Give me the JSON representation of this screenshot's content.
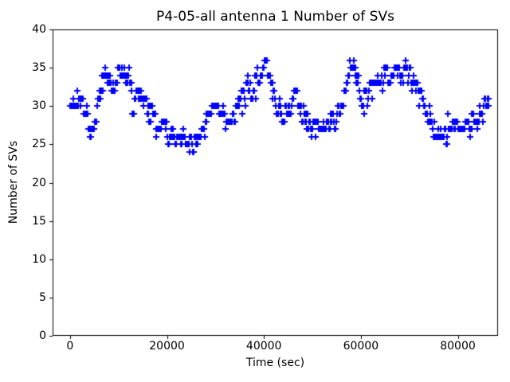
{
  "chart_data": {
    "type": "scatter",
    "title": "P4-05-all antenna 1 Number of SVs",
    "xlabel": "Time (sec)",
    "ylabel": "Number of SVs",
    "marker": "plus",
    "marker_color": "#0000ff",
    "axis_color": "#000000",
    "background_color": "#ffffff",
    "grid": false,
    "legend": null,
    "xlim": [
      -3600,
      88300
    ],
    "ylim": [
      0,
      40
    ],
    "xticks": [
      0,
      20000,
      40000,
      60000,
      80000
    ],
    "yticks": [
      0,
      5,
      10,
      15,
      20,
      25,
      30,
      35,
      40
    ],
    "series": [
      {
        "name": "Number of SVs",
        "time_range_sec": [
          0,
          86400
        ],
        "value_range": [
          24,
          36
        ],
        "approx_sample_interval_sec": 150,
        "trend_keypoints": [
          [
            0,
            30.2
          ],
          [
            900,
            30.4
          ],
          [
            1600,
            31.2
          ],
          [
            2400,
            31.4
          ],
          [
            3000,
            30.0
          ],
          [
            3600,
            27.8
          ],
          [
            4200,
            26.3
          ],
          [
            4800,
            27.0
          ],
          [
            5400,
            28.8
          ],
          [
            6000,
            31.0
          ],
          [
            6600,
            33.2
          ],
          [
            7200,
            34.6
          ],
          [
            7800,
            34.0
          ],
          [
            8400,
            32.2
          ],
          [
            9000,
            32.6
          ],
          [
            9600,
            33.8
          ],
          [
            10300,
            34.6
          ],
          [
            11000,
            35.2
          ],
          [
            11600,
            34.2
          ],
          [
            12300,
            32.8
          ],
          [
            13000,
            31.2
          ],
          [
            13700,
            30.6
          ],
          [
            14500,
            30.8
          ],
          [
            15300,
            30.4
          ],
          [
            16000,
            29.7
          ],
          [
            16800,
            29.0
          ],
          [
            17600,
            28.3
          ],
          [
            18400,
            27.7
          ],
          [
            19200,
            27.1
          ],
          [
            20000,
            26.5
          ],
          [
            20800,
            26.0
          ],
          [
            21600,
            25.7
          ],
          [
            22400,
            25.5
          ],
          [
            23200,
            25.4
          ],
          [
            24000,
            25.2
          ],
          [
            24800,
            25.0
          ],
          [
            25500,
            24.8
          ],
          [
            26100,
            25.3
          ],
          [
            26700,
            25.9
          ],
          [
            27300,
            26.7
          ],
          [
            27900,
            27.6
          ],
          [
            28500,
            28.6
          ],
          [
            29200,
            29.2
          ],
          [
            29800,
            30.2
          ],
          [
            30400,
            29.9
          ],
          [
            31000,
            29.3
          ],
          [
            31600,
            29.0
          ],
          [
            32300,
            28.4
          ],
          [
            33000,
            28.0
          ],
          [
            33700,
            28.7
          ],
          [
            34400,
            29.9
          ],
          [
            35200,
            30.8
          ],
          [
            36200,
            31.3
          ],
          [
            37200,
            31.9
          ],
          [
            38000,
            32.7
          ],
          [
            38700,
            33.8
          ],
          [
            39300,
            34.7
          ],
          [
            39900,
            35.4
          ],
          [
            40500,
            35.0
          ],
          [
            41000,
            33.7
          ],
          [
            41500,
            32.2
          ],
          [
            42000,
            30.7
          ],
          [
            42600,
            30.0
          ],
          [
            43400,
            29.4
          ],
          [
            44200,
            29.0
          ],
          [
            45000,
            29.4
          ],
          [
            45800,
            30.2
          ],
          [
            46400,
            31.2
          ],
          [
            47000,
            30.6
          ],
          [
            47600,
            29.6
          ],
          [
            48200,
            28.7
          ],
          [
            49000,
            28.1
          ],
          [
            49800,
            27.6
          ],
          [
            50600,
            27.3
          ],
          [
            51600,
            27.1
          ],
          [
            52600,
            27.3
          ],
          [
            53600,
            27.6
          ],
          [
            54100,
            28.5
          ],
          [
            54700,
            28.2
          ],
          [
            55300,
            28.9
          ],
          [
            55900,
            29.8
          ],
          [
            56500,
            31.4
          ],
          [
            57100,
            33.2
          ],
          [
            57700,
            34.8
          ],
          [
            58300,
            35.4
          ],
          [
            58900,
            34.4
          ],
          [
            59500,
            33.0
          ],
          [
            60100,
            31.3
          ],
          [
            60700,
            30.4
          ],
          [
            61300,
            31.6
          ],
          [
            61900,
            32.9
          ],
          [
            62600,
            33.5
          ],
          [
            63400,
            33.3
          ],
          [
            64200,
            33.4
          ],
          [
            65000,
            33.6
          ],
          [
            65800,
            33.9
          ],
          [
            66600,
            34.2
          ],
          [
            67300,
            34.8
          ],
          [
            68000,
            34.5
          ],
          [
            68700,
            34.3
          ],
          [
            69300,
            34.6
          ],
          [
            70000,
            33.9
          ],
          [
            70700,
            33.1
          ],
          [
            71400,
            32.2
          ],
          [
            72100,
            31.0
          ],
          [
            72800,
            30.0
          ],
          [
            73500,
            29.0
          ],
          [
            74200,
            28.2
          ],
          [
            74900,
            27.4
          ],
          [
            75600,
            26.7
          ],
          [
            76300,
            26.1
          ],
          [
            77000,
            26.0
          ],
          [
            77700,
            26.5
          ],
          [
            78400,
            26.9
          ],
          [
            79200,
            27.0
          ],
          [
            80000,
            27.1
          ],
          [
            81000,
            27.2
          ],
          [
            82000,
            27.3
          ],
          [
            83000,
            27.6
          ],
          [
            83800,
            28.0
          ],
          [
            84600,
            28.7
          ],
          [
            85200,
            29.4
          ],
          [
            85700,
            30.1
          ],
          [
            86100,
            30.7
          ],
          [
            86400,
            31.0
          ]
        ]
      }
    ]
  }
}
